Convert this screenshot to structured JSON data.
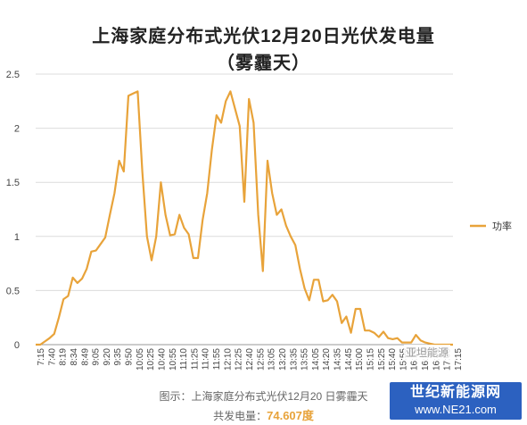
{
  "title_line1": "上海家庭分布式光伏12月20日光伏发电量",
  "title_line2": "（雾霾天）",
  "caption": "图示：上海家庭分布式光伏12月20 日雾霾天",
  "total_label": "共发电量：",
  "total_value": "74.607度",
  "watermark": "亚坦能源",
  "brand_line1": "世纪新能源网",
  "brand_line2": "www.NE21.com",
  "colors": {
    "series": "#e8a33a",
    "grid": "#dcdcdc",
    "axis": "#999999",
    "brand": "#2c61c0"
  },
  "chart_data": {
    "type": "line",
    "ylim": [
      0,
      2.5
    ],
    "yticks": [
      "0",
      "0.5",
      "1",
      "1.5",
      "2",
      "2.5"
    ],
    "grid": true,
    "legend_position": "right",
    "x_tick_labels": [
      "7:15",
      "7:40",
      "8:19",
      "8:34",
      "8:49",
      "9:05",
      "9:20",
      "9:35",
      "9:50",
      "10:05",
      "10:25",
      "10:40",
      "10:55",
      "11:10",
      "11:25",
      "11:40",
      "11:55",
      "12:10",
      "12:25",
      "12:40",
      "12:55",
      "13:05",
      "13:20",
      "13:35",
      "13:55",
      "14:05",
      "14:20",
      "14:35",
      "14:45",
      "15:00",
      "15:15",
      "15:25",
      "15:40",
      "15:55",
      "16:10",
      "16:25",
      "16:45",
      "17:00",
      "17:15"
    ],
    "series": [
      {
        "name": "功率",
        "values": [
          0,
          0,
          0.03,
          0.06,
          0.1,
          0.25,
          0.42,
          0.45,
          0.62,
          0.57,
          0.61,
          0.7,
          0.86,
          0.87,
          0.93,
          0.99,
          1.2,
          1.4,
          1.7,
          1.6,
          2.3,
          2.32,
          2.34,
          1.6,
          1.0,
          0.78,
          1.0,
          1.5,
          1.2,
          1.01,
          1.02,
          1.2,
          1.08,
          1.02,
          0.8,
          0.8,
          1.15,
          1.4,
          1.8,
          2.12,
          2.05,
          2.25,
          2.34,
          2.18,
          2.02,
          1.32,
          2.27,
          2.05,
          1.2,
          0.68,
          1.7,
          1.4,
          1.2,
          1.25,
          1.1,
          1.0,
          0.92,
          0.7,
          0.52,
          0.41,
          0.6,
          0.6,
          0.4,
          0.41,
          0.46,
          0.4,
          0.2,
          0.26,
          0.11,
          0.33,
          0.33,
          0.13,
          0.13,
          0.11,
          0.07,
          0.12,
          0.06,
          0.05,
          0.06,
          0.02,
          0.02,
          0.02,
          0.09,
          0.04,
          0.02,
          0.01,
          0,
          0,
          0,
          0,
          0
        ]
      }
    ]
  }
}
